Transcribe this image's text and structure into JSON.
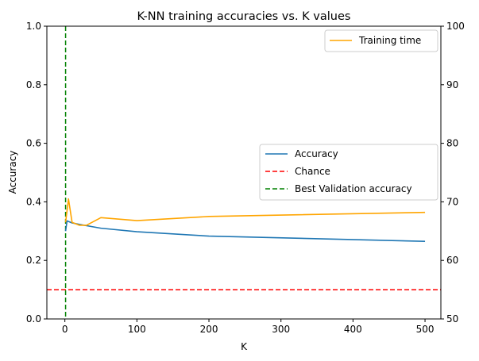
{
  "chart_data": {
    "type": "line",
    "title": "K-NN training accuracies vs. K values",
    "xlabel": "K",
    "ylabel": "Accuracy",
    "xlim": [
      -25,
      522
    ],
    "ylim": [
      0.0,
      1.0
    ],
    "y2lim": [
      50,
      100
    ],
    "xticks": [
      0,
      100,
      200,
      300,
      400,
      500
    ],
    "yticks": [
      0.0,
      0.2,
      0.4,
      0.6,
      0.8,
      1.0
    ],
    "y2ticks": [
      50,
      60,
      70,
      80,
      90,
      100
    ],
    "grid": false,
    "series": [
      {
        "name": "Accuracy",
        "axis": "left",
        "color": "#1f77b4",
        "style": "solid",
        "x": [
          1,
          3,
          5,
          10,
          20,
          50,
          100,
          200,
          500
        ],
        "y": [
          0.3,
          0.335,
          0.333,
          0.328,
          0.323,
          0.31,
          0.298,
          0.283,
          0.265
        ]
      },
      {
        "name": "Training time",
        "axis": "right",
        "color": "#ffa500",
        "style": "solid",
        "x": [
          1,
          3,
          5,
          10,
          20,
          30,
          50,
          100,
          200,
          500
        ],
        "y": [
          66.5,
          68.5,
          70.5,
          66.5,
          66.0,
          66.0,
          67.3,
          66.8,
          67.5,
          68.2
        ]
      }
    ],
    "reference_lines": [
      {
        "name": "Chance",
        "orientation": "horizontal",
        "value": 0.1,
        "color": "#ff0000",
        "style": "dashed"
      },
      {
        "name": "Best Validation accuracy",
        "orientation": "vertical",
        "value": 1,
        "color": "#008000",
        "style": "dashed"
      }
    ],
    "legends": [
      {
        "placement": "top-right",
        "entries": [
          "Training time"
        ]
      },
      {
        "placement": "center-right",
        "entries": [
          "Accuracy",
          "Chance",
          "Best Validation accuracy"
        ]
      }
    ]
  }
}
